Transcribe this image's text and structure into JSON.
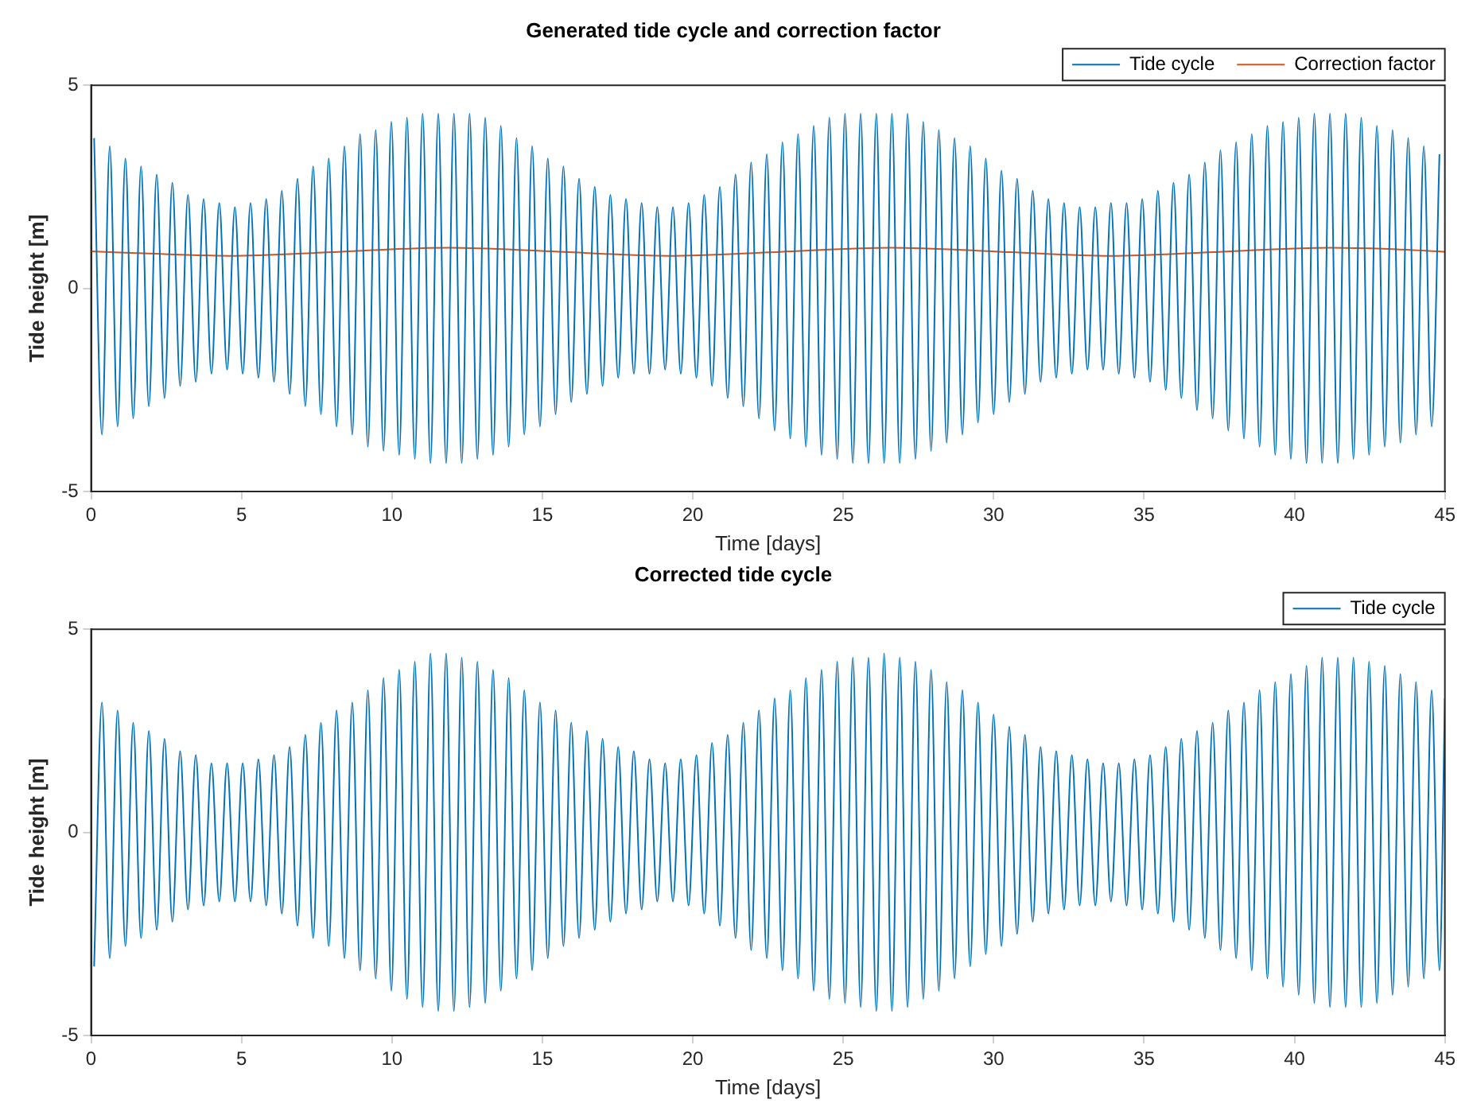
{
  "chart_data": [
    {
      "type": "line",
      "title": "Generated tide cycle and correction factor",
      "xlabel": "Time [days]",
      "ylabel": "Tide height [m]",
      "xlim": [
        0,
        45
      ],
      "xticks": [
        0,
        5,
        10,
        15,
        20,
        25,
        30,
        35,
        40,
        45
      ],
      "ylim": [
        -5,
        5
      ],
      "yticks": [
        -5,
        0,
        5
      ],
      "grid": false,
      "legend": "top right",
      "x": [
        0.1,
        0.36,
        0.62,
        0.88,
        1.14,
        1.4,
        1.66,
        1.92,
        2.18,
        2.44,
        2.7,
        2.96,
        3.22,
        3.48,
        3.74,
        4,
        4.26,
        4.52,
        4.78,
        5.04,
        5.3,
        5.56,
        5.82,
        6.08,
        6.34,
        6.6,
        6.86,
        7.12,
        7.38,
        7.64,
        7.9,
        8.16,
        8.42,
        8.68,
        8.94,
        9.2,
        9.46,
        9.72,
        9.98,
        10.24,
        10.5,
        10.76,
        11.02,
        11.28,
        11.54,
        11.8,
        12.06,
        12.32,
        12.58,
        12.84,
        13.1,
        13.36,
        13.62,
        13.88,
        14.14,
        14.4,
        14.66,
        14.92,
        15.18,
        15.44,
        15.7,
        15.96,
        16.22,
        16.48,
        16.74,
        17,
        17.26,
        17.52,
        17.78,
        18.04,
        18.3,
        18.56,
        18.82,
        19.08,
        19.34,
        19.6,
        19.86,
        20.12,
        20.38,
        20.64,
        20.9,
        21.16,
        21.42,
        21.68,
        21.94,
        22.2,
        22.46,
        22.72,
        22.98,
        23.24,
        23.5,
        23.76,
        24.02,
        24.28,
        24.54,
        24.8,
        25.06,
        25.32,
        25.58,
        25.84,
        26.1,
        26.36,
        26.62,
        26.88,
        27.14,
        27.4,
        27.66,
        27.92,
        28.18,
        28.44,
        28.7,
        28.96,
        29.22,
        29.48,
        29.74,
        30,
        30.26,
        30.52,
        30.78,
        31.04,
        31.3,
        31.56,
        31.82,
        32.08,
        32.34,
        32.6,
        32.86,
        33.12,
        33.38,
        33.64,
        33.9,
        34.16,
        34.42,
        34.68,
        34.94,
        35.2,
        35.46,
        35.72,
        35.98,
        36.24,
        36.5,
        36.76,
        37.02,
        37.28,
        37.54,
        37.8,
        38.06,
        38.32,
        38.58,
        38.84,
        39.1,
        39.36,
        39.62,
        39.88,
        40.14,
        40.4,
        40.66,
        40.92,
        41.18,
        41.44,
        41.7,
        41.96,
        42.22,
        42.48,
        42.74,
        43,
        43.26,
        43.52,
        43.78,
        44.04,
        44.3,
        44.56,
        44.82
      ],
      "series": [
        {
          "name": "Tide cycle",
          "color": "#0072bd",
          "values": [
            3.7,
            -3.6,
            3.5,
            -3.4,
            3.2,
            -3.2,
            3.0,
            -2.9,
            2.8,
            -2.7,
            2.6,
            -2.4,
            2.3,
            -2.3,
            2.2,
            -2.1,
            2.1,
            -2.0,
            2.0,
            -2.1,
            2.1,
            -2.2,
            2.2,
            -2.3,
            2.4,
            -2.6,
            2.7,
            -2.9,
            3.0,
            -3.1,
            3.2,
            -3.4,
            3.5,
            -3.6,
            3.8,
            -3.9,
            3.9,
            -4.0,
            4.1,
            -4.1,
            4.2,
            -4.2,
            4.3,
            -4.3,
            4.3,
            -4.3,
            4.3,
            -4.3,
            4.3,
            -4.2,
            4.2,
            -4.1,
            4.0,
            -3.9,
            3.7,
            -3.6,
            3.5,
            -3.4,
            3.2,
            -3.1,
            3.0,
            -2.8,
            2.7,
            -2.6,
            2.5,
            -2.4,
            2.3,
            -2.2,
            2.2,
            -2.1,
            2.1,
            -2.1,
            2.0,
            -2.0,
            2.0,
            -2.1,
            2.1,
            -2.2,
            2.3,
            -2.4,
            2.5,
            -2.7,
            2.8,
            -2.9,
            3.1,
            -3.2,
            3.3,
            -3.5,
            3.6,
            -3.7,
            3.8,
            -3.9,
            4.0,
            -4.1,
            4.2,
            -4.2,
            4.3,
            -4.3,
            4.3,
            -4.3,
            4.3,
            -4.3,
            4.3,
            -4.3,
            4.3,
            -4.2,
            4.1,
            -4.0,
            3.9,
            -3.8,
            3.7,
            -3.6,
            3.5,
            -3.3,
            3.2,
            -3.1,
            2.9,
            -2.8,
            2.7,
            -2.6,
            2.4,
            -2.3,
            2.2,
            -2.2,
            2.1,
            -2.1,
            2.0,
            -2.0,
            2.0,
            -2.0,
            2.1,
            -2.1,
            2.1,
            -2.2,
            2.2,
            -2.3,
            2.4,
            -2.5,
            2.6,
            -2.7,
            2.8,
            -3.0,
            3.1,
            -3.2,
            3.4,
            -3.5,
            3.6,
            -3.7,
            3.8,
            -3.9,
            4.0,
            -4.1,
            4.1,
            -4.2,
            4.2,
            -4.3,
            4.3,
            -4.3,
            4.3,
            -4.3,
            4.3,
            -4.2,
            4.2,
            -4.1,
            4.0,
            -3.9,
            3.9,
            -3.8,
            3.7,
            -3.6,
            3.5,
            -3.4,
            3.3
          ]
        },
        {
          "name": "Correction factor",
          "color": "#d95319",
          "x": [
            0,
            2.3,
            4.6,
            8.2,
            11.9,
            15.3,
            19.2,
            22.9,
            26.6,
            30.3,
            33.9,
            37.5,
            41.2,
            43.1,
            45
          ],
          "values": [
            0.91,
            0.85,
            0.8,
            0.9,
            1.0,
            0.91,
            0.8,
            0.9,
            1.0,
            0.9,
            0.8,
            0.9,
            1.0,
            0.97,
            0.9
          ]
        }
      ]
    },
    {
      "type": "line",
      "title": "Corrected tide cycle",
      "xlabel": "Time [days]",
      "ylabel": "Tide height [m]",
      "xlim": [
        0,
        45
      ],
      "xticks": [
        0,
        5,
        10,
        15,
        20,
        25,
        30,
        35,
        40,
        45
      ],
      "ylim": [
        -5,
        5
      ],
      "yticks": [
        -5,
        0,
        5
      ],
      "grid": false,
      "legend": "top right",
      "x": [
        0.1,
        0.36,
        0.62,
        0.88,
        1.14,
        1.4,
        1.66,
        1.92,
        2.18,
        2.44,
        2.7,
        2.96,
        3.22,
        3.48,
        3.74,
        4,
        4.26,
        4.52,
        4.78,
        5.04,
        5.3,
        5.56,
        5.82,
        6.08,
        6.34,
        6.6,
        6.86,
        7.12,
        7.38,
        7.64,
        7.9,
        8.16,
        8.42,
        8.68,
        8.94,
        9.2,
        9.46,
        9.72,
        9.98,
        10.24,
        10.5,
        10.76,
        11.02,
        11.28,
        11.54,
        11.8,
        12.06,
        12.32,
        12.58,
        12.84,
        13.1,
        13.36,
        13.62,
        13.88,
        14.14,
        14.4,
        14.66,
        14.92,
        15.18,
        15.44,
        15.7,
        15.96,
        16.22,
        16.48,
        16.74,
        17,
        17.26,
        17.52,
        17.78,
        18.04,
        18.3,
        18.56,
        18.82,
        19.08,
        19.34,
        19.6,
        19.86,
        20.12,
        20.38,
        20.64,
        20.9,
        21.16,
        21.42,
        21.68,
        21.94,
        22.2,
        22.46,
        22.72,
        22.98,
        23.24,
        23.5,
        23.76,
        24.02,
        24.28,
        24.54,
        24.8,
        25.06,
        25.32,
        25.58,
        25.84,
        26.1,
        26.36,
        26.62,
        26.88,
        27.14,
        27.4,
        27.66,
        27.92,
        28.18,
        28.44,
        28.7,
        28.96,
        29.22,
        29.48,
        29.74,
        30,
        30.26,
        30.52,
        30.78,
        31.04,
        31.3,
        31.56,
        31.82,
        32.08,
        32.34,
        32.6,
        32.86,
        33.12,
        33.38,
        33.64,
        33.9,
        34.16,
        34.42,
        34.68,
        34.94,
        35.2,
        35.46,
        35.72,
        35.98,
        36.24,
        36.5,
        36.76,
        37.02,
        37.28,
        37.54,
        37.8,
        38.06,
        38.32,
        38.58,
        38.84,
        39.1,
        39.36,
        39.62,
        39.88,
        40.14,
        40.4,
        40.66,
        40.92,
        41.18,
        41.44,
        41.7,
        41.96,
        42.22,
        42.48,
        42.74,
        43,
        43.26,
        43.52,
        43.78,
        44.04,
        44.3,
        44.56,
        44.82,
        45
      ],
      "series": [
        {
          "name": "Tide cycle",
          "color": "#0072bd",
          "values": [
            -3.3,
            3.2,
            -3.1,
            3.0,
            -2.8,
            2.7,
            -2.6,
            2.5,
            -2.4,
            2.3,
            -2.2,
            2.0,
            -1.9,
            1.9,
            -1.8,
            1.7,
            -1.7,
            1.7,
            -1.7,
            1.7,
            -1.7,
            1.8,
            -1.8,
            1.9,
            -2.0,
            2.1,
            -2.3,
            2.4,
            -2.6,
            2.7,
            -2.8,
            3.0,
            -3.1,
            3.2,
            -3.4,
            3.5,
            -3.6,
            3.8,
            -3.9,
            4.0,
            -4.1,
            4.2,
            -4.3,
            4.4,
            -4.4,
            4.4,
            -4.4,
            4.3,
            -4.3,
            4.2,
            -4.2,
            4.0,
            -3.9,
            3.8,
            -3.6,
            3.5,
            -3.4,
            3.2,
            -3.1,
            3.0,
            -2.8,
            2.7,
            -2.6,
            2.5,
            -2.4,
            2.3,
            -2.2,
            2.1,
            -2.0,
            2.0,
            -1.9,
            1.8,
            -1.7,
            1.7,
            -1.7,
            1.8,
            -1.8,
            1.9,
            -2.0,
            2.2,
            -2.3,
            2.4,
            -2.6,
            2.7,
            -2.9,
            3.0,
            -3.1,
            3.3,
            -3.4,
            3.5,
            -3.6,
            3.8,
            -3.9,
            4.0,
            -4.1,
            4.2,
            -4.2,
            4.3,
            -4.3,
            4.3,
            -4.4,
            4.4,
            -4.4,
            4.3,
            -4.3,
            4.2,
            -4.1,
            4.0,
            -3.9,
            3.7,
            -3.6,
            3.5,
            -3.3,
            3.2,
            -3.0,
            2.9,
            -2.8,
            2.6,
            -2.5,
            2.4,
            -2.2,
            2.1,
            -2.0,
            2.0,
            -1.9,
            1.9,
            -1.8,
            1.8,
            -1.8,
            1.7,
            -1.7,
            1.7,
            -1.8,
            1.8,
            -1.9,
            1.9,
            -2.0,
            2.1,
            -2.2,
            2.3,
            -2.4,
            2.5,
            -2.6,
            2.7,
            -2.9,
            3.0,
            -3.1,
            3.2,
            -3.4,
            3.5,
            -3.6,
            3.7,
            -3.8,
            3.9,
            -4.0,
            4.1,
            -4.2,
            4.3,
            -4.3,
            4.3,
            -4.3,
            4.3,
            -4.3,
            4.2,
            -4.2,
            4.1,
            -4.0,
            3.9,
            -3.8,
            3.7,
            -3.6,
            3.5,
            -3.4,
            3.3
          ]
        }
      ]
    }
  ]
}
